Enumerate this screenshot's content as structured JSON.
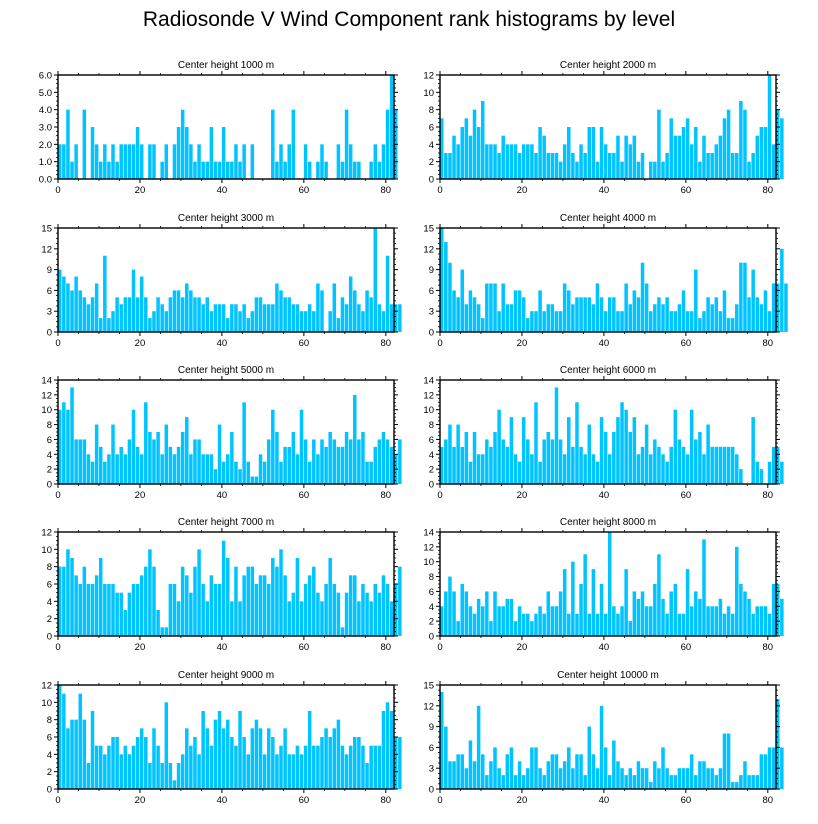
{
  "title": "Radiosonde V Wind Component rank histograms by level",
  "bar_color": "#00c4ff",
  "chart_data": [
    {
      "type": "bar",
      "title": "Center height 1000 m",
      "ylim": [
        0,
        6
      ],
      "yticks": [
        "0.0",
        "1.0",
        "2.0",
        "3.0",
        "4.0",
        "5.0",
        "6.0"
      ],
      "xlim": [
        0,
        82
      ],
      "xticks": [
        "0",
        "20",
        "40",
        "60",
        "80"
      ],
      "values": [
        2,
        2,
        4,
        1,
        2,
        0,
        4,
        0,
        3,
        2,
        1,
        2,
        1,
        2,
        1,
        2,
        2,
        2,
        2,
        3,
        2,
        0,
        2,
        2,
        0,
        1,
        2,
        0,
        2,
        3,
        4,
        3,
        2,
        1,
        2,
        1,
        1,
        3,
        1,
        1,
        3,
        1,
        1,
        2,
        1,
        2,
        0,
        2,
        0,
        0,
        0,
        0,
        4,
        1,
        2,
        1,
        2,
        4,
        0,
        0,
        2,
        1,
        0,
        1,
        2,
        1,
        0,
        0,
        2,
        1,
        4,
        2,
        1,
        1,
        0,
        0,
        1,
        2,
        1,
        2,
        4,
        6,
        4
      ],
      "xlabel": "",
      "ylabel": ""
    },
    {
      "type": "bar",
      "title": "Center height 2000 m",
      "ylim": [
        0,
        12
      ],
      "yticks": [
        "0",
        "2",
        "4",
        "6",
        "8",
        "10",
        "12"
      ],
      "xlim": [
        0,
        82
      ],
      "xticks": [
        "0",
        "20",
        "40",
        "60",
        "80"
      ],
      "values": [
        7,
        3,
        3,
        5,
        4,
        6,
        7,
        5,
        8,
        6,
        9,
        4,
        4,
        4,
        3,
        5,
        4,
        4,
        4,
        3,
        4,
        4,
        4,
        3,
        6,
        5,
        3,
        3,
        3,
        2,
        4,
        6,
        3,
        2,
        4,
        3,
        6,
        6,
        2,
        6,
        4,
        3,
        3,
        5,
        2,
        5,
        4,
        5,
        2,
        3,
        0,
        2,
        2,
        8,
        2,
        3,
        7,
        5,
        5,
        6,
        7,
        4,
        6,
        2,
        5,
        3,
        3,
        4,
        5,
        7,
        8,
        3,
        3,
        9,
        8,
        2,
        3,
        5,
        6,
        6,
        12,
        4,
        8,
        7
      ],
      "xlabel": "",
      "ylabel": ""
    },
    {
      "type": "bar",
      "title": "Center height 3000 m",
      "ylim": [
        0,
        15
      ],
      "yticks": [
        "0",
        "3",
        "6",
        "9",
        "12",
        "15"
      ],
      "xlim": [
        0,
        82
      ],
      "xticks": [
        "0",
        "20",
        "40",
        "60",
        "80"
      ],
      "values": [
        9,
        8,
        7,
        6,
        8,
        6,
        5,
        4,
        5,
        7,
        2,
        11,
        2,
        3,
        5,
        4,
        5,
        5,
        9,
        5,
        8,
        5,
        2,
        3,
        5,
        4,
        3,
        5,
        6,
        6,
        5,
        7,
        6,
        5,
        5,
        4,
        5,
        3,
        4,
        4,
        4,
        2,
        4,
        4,
        3,
        4,
        2,
        3,
        5,
        5,
        4,
        4,
        4,
        7,
        6,
        5,
        5,
        4,
        4,
        3,
        3,
        4,
        3,
        7,
        6,
        0,
        3,
        7,
        2,
        5,
        4,
        8,
        6,
        4,
        3,
        6,
        5,
        15,
        4,
        3,
        11,
        4,
        4,
        4
      ],
      "xlabel": "",
      "ylabel": ""
    },
    {
      "type": "bar",
      "title": "Center height 4000 m",
      "ylim": [
        0,
        15
      ],
      "yticks": [
        "0",
        "3",
        "6",
        "9",
        "12",
        "15"
      ],
      "xlim": [
        0,
        82
      ],
      "xticks": [
        "0",
        "20",
        "40",
        "60",
        "80"
      ],
      "values": [
        15,
        13,
        10,
        6,
        5,
        9,
        4,
        6,
        5,
        4,
        2,
        7,
        7,
        7,
        3,
        7,
        4,
        4,
        6,
        6,
        5,
        2,
        3,
        3,
        6,
        3,
        4,
        4,
        3,
        3,
        7,
        6,
        4,
        5,
        5,
        5,
        5,
        4,
        7,
        5,
        3,
        5,
        5,
        3,
        3,
        7,
        4,
        6,
        5,
        10,
        7,
        3,
        4,
        5,
        4,
        5,
        3,
        3,
        4,
        6,
        3,
        3,
        9,
        2,
        3,
        5,
        4,
        5,
        3,
        6,
        2,
        2,
        4,
        10,
        10,
        5,
        9,
        5,
        4,
        6,
        3,
        7,
        7,
        12,
        7
      ],
      "xlabel": "",
      "ylabel": ""
    },
    {
      "type": "bar",
      "title": "Center height 5000 m",
      "ylim": [
        0,
        14
      ],
      "yticks": [
        "0",
        "2",
        "4",
        "6",
        "8",
        "10",
        "12",
        "14"
      ],
      "xlim": [
        0,
        82
      ],
      "xticks": [
        "0",
        "20",
        "40",
        "60",
        "80"
      ],
      "values": [
        10,
        11,
        10,
        13,
        6,
        6,
        6,
        4,
        3,
        8,
        5,
        3,
        4,
        8,
        4,
        5,
        4,
        6,
        10,
        5,
        4,
        11,
        7,
        6,
        7,
        4,
        8,
        5,
        4,
        5,
        7,
        9,
        4,
        6,
        6,
        4,
        4,
        4,
        2,
        8,
        3,
        4,
        7,
        3,
        2,
        11,
        3,
        1,
        1,
        4,
        3,
        6,
        10,
        7,
        3,
        5,
        5,
        7,
        4,
        10,
        6,
        3,
        6,
        4,
        6,
        5,
        7,
        6,
        5,
        5,
        7,
        6,
        12,
        6,
        7,
        3,
        3,
        5,
        6,
        7,
        6,
        5,
        4,
        6
      ],
      "xlabel": "",
      "ylabel": ""
    },
    {
      "type": "bar",
      "title": "Center height 6000 m",
      "ylim": [
        0,
        14
      ],
      "yticks": [
        "0",
        "2",
        "4",
        "6",
        "8",
        "10",
        "12",
        "14"
      ],
      "xlim": [
        0,
        82
      ],
      "xticks": [
        "0",
        "20",
        "40",
        "60",
        "80"
      ],
      "values": [
        5,
        6,
        8,
        5,
        8,
        5,
        7,
        3,
        7,
        4,
        4,
        6,
        5,
        7,
        10,
        6,
        5,
        9,
        4,
        3,
        9,
        6,
        4,
        11,
        3,
        6,
        7,
        6,
        13,
        6,
        4,
        9,
        5,
        11,
        5,
        4,
        8,
        4,
        3,
        9,
        7,
        4,
        7,
        9,
        11,
        10,
        7,
        9,
        4,
        5,
        8,
        4,
        6,
        5,
        4,
        3,
        5,
        10,
        6,
        5,
        4,
        10,
        6,
        7,
        4,
        8,
        5,
        5,
        5,
        5,
        5,
        5,
        4,
        2,
        0,
        0,
        9,
        3,
        2,
        0,
        3,
        5,
        5,
        3
      ],
      "xlabel": "",
      "ylabel": ""
    },
    {
      "type": "bar",
      "title": "Center height 7000 m",
      "ylim": [
        0,
        12
      ],
      "yticks": [
        "0",
        "2",
        "4",
        "6",
        "8",
        "10",
        "12"
      ],
      "xlim": [
        0,
        82
      ],
      "xticks": [
        "0",
        "20",
        "40",
        "60",
        "80"
      ],
      "values": [
        8,
        8,
        10,
        9,
        7,
        6,
        8,
        6,
        6,
        7,
        9,
        6,
        6,
        6,
        5,
        5,
        3,
        5,
        6,
        6,
        7,
        8,
        10,
        8,
        3,
        1,
        1,
        6,
        6,
        4,
        8,
        7,
        5,
        8,
        10,
        6,
        4,
        7,
        6,
        6,
        11,
        9,
        4,
        8,
        4,
        7,
        8,
        8,
        6,
        7,
        7,
        6,
        9,
        8,
        10,
        7,
        4,
        5,
        9,
        4,
        6,
        7,
        8,
        5,
        4,
        6,
        9,
        6,
        5,
        1,
        5,
        7,
        7,
        4,
        6,
        5,
        4,
        6,
        5,
        7,
        6,
        4,
        6,
        8
      ],
      "xlabel": "",
      "ylabel": ""
    },
    {
      "type": "bar",
      "title": "Center height 8000 m",
      "ylim": [
        0,
        14
      ],
      "yticks": [
        "0",
        "2",
        "4",
        "6",
        "8",
        "10",
        "12",
        "14"
      ],
      "xlim": [
        0,
        82
      ],
      "xticks": [
        "0",
        "20",
        "40",
        "60",
        "80"
      ],
      "values": [
        4,
        6,
        8,
        6,
        2,
        7,
        6,
        4,
        3,
        5,
        4,
        6,
        2,
        6,
        4,
        4,
        5,
        5,
        2,
        4,
        3,
        3,
        2,
        3,
        4,
        3,
        6,
        4,
        4,
        6,
        9,
        3,
        10,
        3,
        7,
        11,
        3,
        9,
        3,
        7,
        3,
        14,
        4,
        3,
        4,
        9,
        2,
        6,
        5,
        6,
        4,
        4,
        7,
        11,
        5,
        3,
        6,
        7,
        3,
        3,
        9,
        4,
        6,
        5,
        13,
        4,
        4,
        4,
        5,
        3,
        4,
        3,
        12,
        7,
        6,
        5,
        3,
        4,
        4,
        4,
        3,
        7,
        7,
        5
      ],
      "xlabel": "",
      "ylabel": ""
    },
    {
      "type": "bar",
      "title": "Center height 9000 m",
      "ylim": [
        0,
        12
      ],
      "yticks": [
        "0",
        "2",
        "4",
        "6",
        "8",
        "10",
        "12"
      ],
      "xlim": [
        0,
        82
      ],
      "xticks": [
        "0",
        "20",
        "40",
        "60",
        "80"
      ],
      "values": [
        12,
        11,
        7,
        8,
        8,
        11,
        8,
        3,
        9,
        5,
        5,
        4,
        5,
        6,
        6,
        4,
        5,
        4,
        5,
        6,
        7,
        6,
        3,
        7,
        5,
        3,
        10,
        3,
        1,
        3,
        4,
        7,
        5,
        6,
        4,
        9,
        7,
        5,
        8,
        9,
        7,
        8,
        6,
        5,
        9,
        6,
        4,
        7,
        8,
        7,
        4,
        7,
        6,
        4,
        5,
        7,
        4,
        4,
        5,
        4,
        5,
        9,
        5,
        5,
        6,
        7,
        6,
        7,
        8,
        5,
        4,
        5,
        6,
        6,
        5,
        3,
        5,
        5,
        5,
        9,
        10,
        9,
        6,
        6
      ],
      "xlabel": "",
      "ylabel": ""
    },
    {
      "type": "bar",
      "title": "Center height 10000 m",
      "ylim": [
        0,
        15
      ],
      "yticks": [
        "0",
        "3",
        "6",
        "9",
        "12",
        "15"
      ],
      "xlim": [
        0,
        82
      ],
      "xticks": [
        "0",
        "20",
        "40",
        "60",
        "80"
      ],
      "values": [
        14,
        9,
        4,
        4,
        5,
        5,
        3,
        7,
        4,
        12,
        5,
        2,
        4,
        6,
        3,
        2,
        5,
        6,
        2,
        4,
        2,
        3,
        6,
        6,
        3,
        2,
        4,
        5,
        5,
        3,
        4,
        6,
        3,
        5,
        5,
        2,
        9,
        5,
        3,
        12,
        6,
        2,
        7,
        4,
        3,
        2,
        3,
        2,
        4,
        3,
        3,
        1,
        4,
        3,
        6,
        3,
        2,
        2,
        3,
        3,
        3,
        5,
        2,
        4,
        4,
        3,
        3,
        2,
        3,
        8,
        8,
        1,
        1,
        2,
        4,
        2,
        2,
        2,
        5,
        5,
        6,
        6,
        13,
        6
      ],
      "xlabel": "",
      "ylabel": ""
    }
  ]
}
